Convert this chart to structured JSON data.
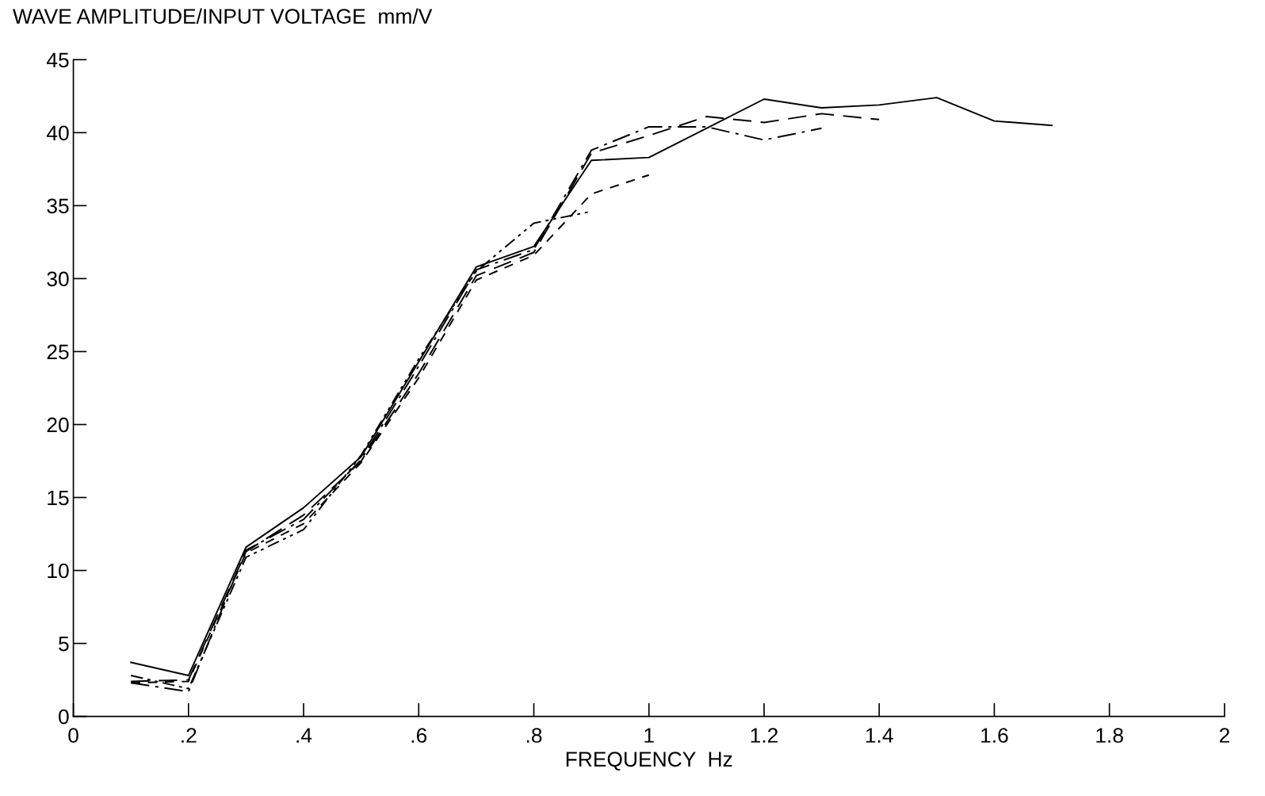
{
  "chart_data": {
    "type": "line",
    "ylabel": "WAVE AMPLITUDE/INPUT VOLTAGE  mm/V",
    "xlabel": "FREQUENCY  Hz",
    "xlim": [
      0,
      2
    ],
    "xticks": [
      0,
      {
        "value": 0.2,
        "label": ".2"
      },
      {
        "value": 0.4,
        "label": ".4"
      },
      {
        "value": 0.6,
        "label": ".6"
      },
      {
        "value": 0.8,
        "label": ".8"
      },
      1,
      1.2,
      1.4,
      1.6,
      1.8,
      2
    ],
    "ylim": [
      0,
      45
    ],
    "yticks": [
      0,
      5,
      10,
      15,
      20,
      25,
      30,
      35,
      40,
      45
    ],
    "grid": false,
    "legend": false,
    "marker": "none",
    "series": [
      {
        "color": "#000000",
        "line_style": "solid",
        "x": [
          0.1,
          0.2,
          0.3,
          0.4,
          0.5,
          0.6,
          0.7,
          0.8,
          0.9,
          1.0,
          1.1,
          1.2,
          1.3,
          1.4,
          1.5,
          1.6,
          1.7
        ],
        "values": [
          3.7,
          2.8,
          11.6,
          14.3,
          17.8,
          24.3,
          30.8,
          32.2,
          38.1,
          38.3,
          40.3,
          42.3,
          41.7,
          41.9,
          42.4,
          40.8,
          40.5
        ]
      },
      {
        "color": "#000000",
        "line_style": "dashdot",
        "x": [
          0.1,
          0.2,
          0.3,
          0.4,
          0.5,
          0.6,
          0.7,
          0.8,
          0.9,
          1.0,
          1.1,
          1.2,
          1.3
        ],
        "values": [
          2.3,
          1.7,
          11.4,
          13.5,
          17.6,
          24.0,
          30.6,
          32.0,
          38.8,
          40.4,
          40.4,
          39.5,
          40.3
        ]
      },
      {
        "color": "#000000",
        "line_style": "dashed",
        "x": [
          0.1,
          0.2,
          0.3,
          0.4,
          0.5,
          0.6,
          0.7,
          0.8,
          0.9,
          1.0,
          1.1,
          1.2,
          1.3,
          1.4
        ],
        "values": [
          2.4,
          2.5,
          11.3,
          13.8,
          17.5,
          23.5,
          30.2,
          31.8,
          38.6,
          39.8,
          41.1,
          40.7,
          41.3,
          40.9
        ]
      },
      {
        "color": "#000000",
        "line_style": "dotted",
        "x": [
          0.1,
          0.2,
          0.3,
          0.4,
          0.5,
          0.6,
          0.7,
          0.8,
          0.9,
          1.0
        ],
        "values": [
          2.3,
          2.4,
          11.2,
          13.2,
          17.4,
          23.2,
          29.9,
          31.6,
          35.8,
          37.1
        ]
      },
      {
        "color": "#000000",
        "line_style": "dashdotdot",
        "x": [
          0.1,
          0.2,
          0.3,
          0.4,
          0.5,
          0.6,
          0.7,
          0.8,
          0.9
        ],
        "values": [
          2.8,
          1.9,
          10.9,
          12.8,
          17.9,
          24.5,
          30.5,
          33.8,
          34.6
        ]
      }
    ]
  }
}
